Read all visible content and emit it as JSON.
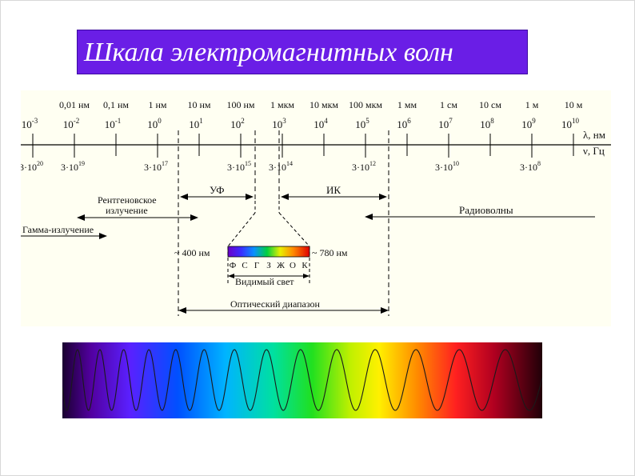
{
  "title": "Шкала электромагнитных волн",
  "axis": {
    "wavelength_label": "λ, нм",
    "frequency_label": "ν, Гц",
    "wavelength_units": [
      "0,01 нм",
      "0,1 нм",
      "1 нм",
      "10 нм",
      "100 нм",
      "1 мкм",
      "10 мкм",
      "100 мкм",
      "1 мм",
      "1 см",
      "10 см",
      "1 м",
      "10 м"
    ],
    "wavelength_powers": [
      "-3",
      "-2",
      "-1",
      "0",
      "1",
      "2",
      "3",
      "4",
      "5",
      "6",
      "7",
      "8",
      "9",
      "10"
    ],
    "frequency_ticks": [
      {
        "mantissa": "3·10",
        "exp": "20"
      },
      {
        "mantissa": "3·10",
        "exp": "19"
      },
      {
        "mantissa": "3·10",
        "exp": "17"
      },
      {
        "mantissa": "3·10",
        "exp": "15"
      },
      {
        "mantissa": "3·10",
        "exp": "14"
      },
      {
        "mantissa": "3·10",
        "exp": "12"
      },
      {
        "mantissa": "3·10",
        "exp": "10"
      },
      {
        "mantissa": "3·10",
        "exp": "8"
      }
    ]
  },
  "ranges": {
    "uv": "УФ",
    "ir": "ИК",
    "xray_line1": "Рентгеновское",
    "xray_line2": "излучение",
    "gamma": "Гамма-излучение",
    "radio": "Радиоволны",
    "visible": "Видимый свет",
    "optical": "Оптический диапазон"
  },
  "visible_band": {
    "left_label": "~ 400 нм",
    "right_label": "~ 780 нм",
    "color_letters": [
      "Ф",
      "С",
      "Г",
      "З",
      "Ж",
      "О",
      "К"
    ]
  },
  "colors": {
    "title_bg": "#6a1ee6",
    "diagram_bg": "#fffff2"
  }
}
